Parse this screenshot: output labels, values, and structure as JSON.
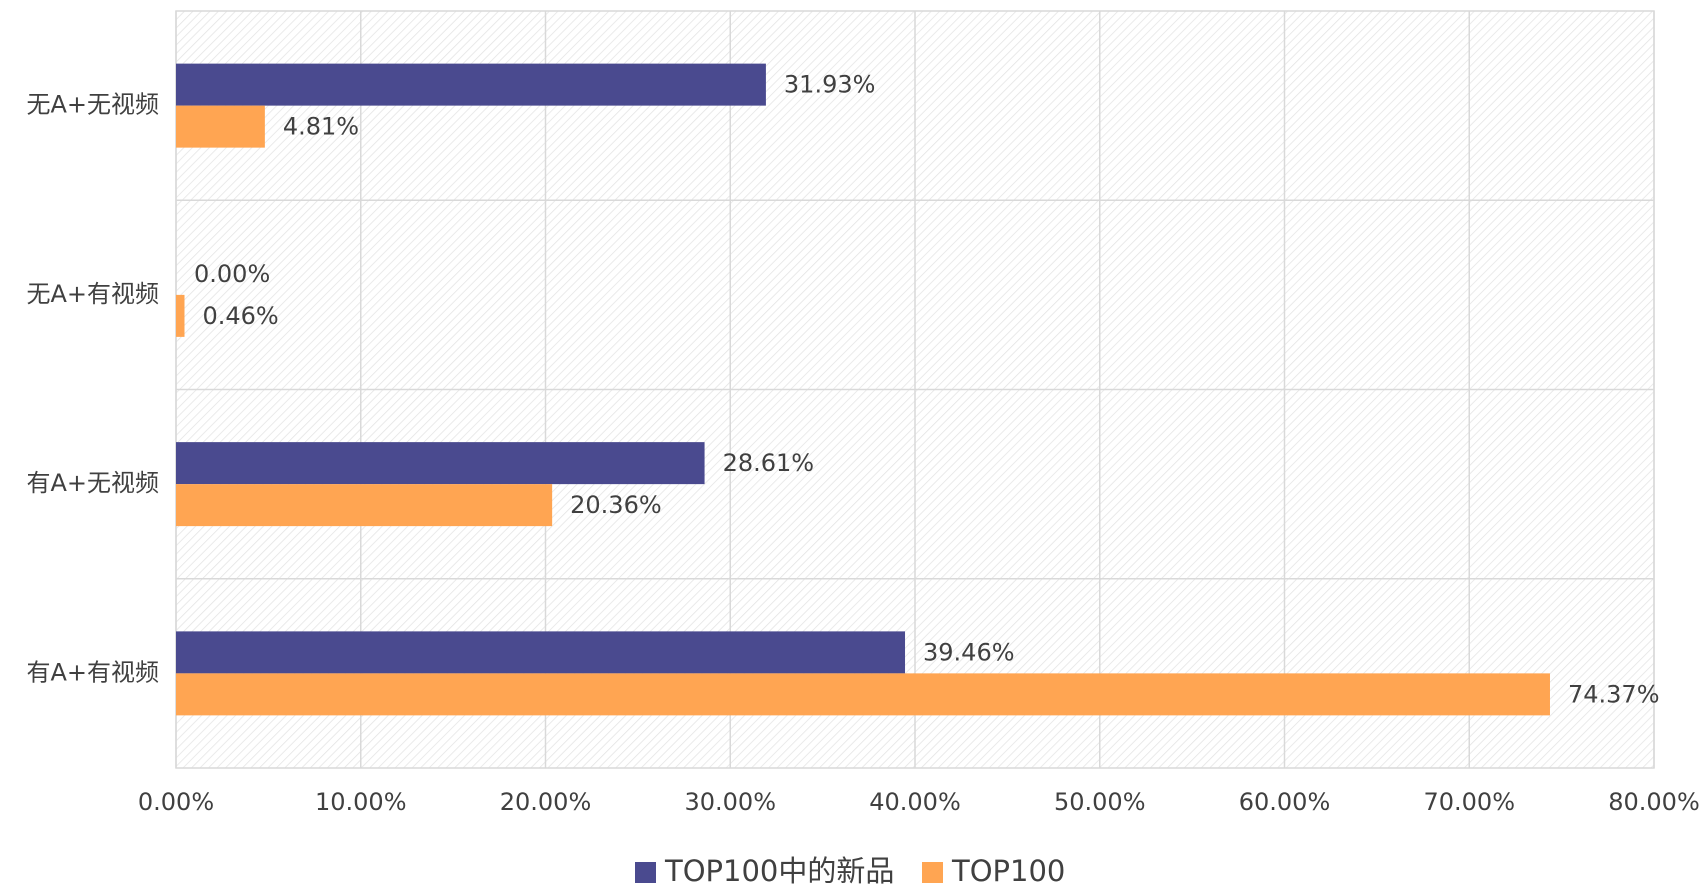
{
  "chart_data": {
    "type": "hbar",
    "categories": [
      "无A+无视频",
      "无A+有视频",
      "有A+无视频",
      "有A+有视频"
    ],
    "series": [
      {
        "name": "TOP100中的新品",
        "color": "#4a4a8f",
        "values": [
          31.93,
          0,
          28.61,
          39.46
        ],
        "value_labels": [
          "31.93%",
          "0.00%",
          "28.61%",
          "39.46%"
        ]
      },
      {
        "name": "TOP100",
        "color": "#ffa552",
        "values": [
          4.81,
          0.46,
          20.36,
          74.37
        ],
        "value_labels": [
          "4.81%",
          "0.46%",
          "20.36%",
          "74.37%"
        ]
      }
    ],
    "xlim": [
      0,
      80
    ],
    "xticks": [
      {
        "value": 0,
        "label": "0.00%"
      },
      {
        "value": 10,
        "label": "10.00%"
      },
      {
        "value": 20,
        "label": "20.00%"
      },
      {
        "value": 30,
        "label": "30.00%"
      },
      {
        "value": 40,
        "label": "40.00%"
      },
      {
        "value": 50,
        "label": "50.00%"
      },
      {
        "value": 60,
        "label": "60.00%"
      },
      {
        "value": 70,
        "label": "70.00%"
      },
      {
        "value": 80,
        "label": "80.00%"
      }
    ],
    "grid": true,
    "legend": "bottom"
  }
}
